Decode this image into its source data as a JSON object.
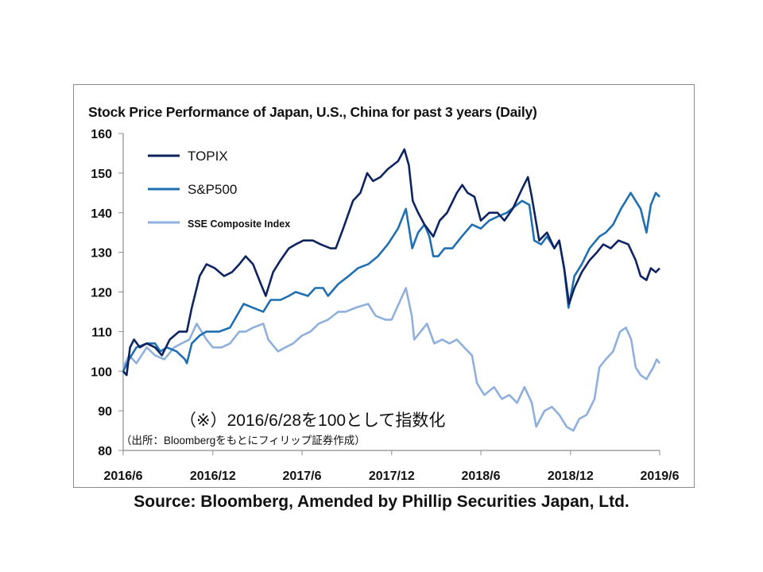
{
  "chart_data": {
    "type": "line",
    "title": "Stock Price Performance of Japan, U.S., China for past 3 years (Daily)",
    "xlabel": "",
    "ylabel": "",
    "ylim": [
      80,
      160
    ],
    "yticks": [
      "160",
      "150",
      "140",
      "130",
      "120",
      "110",
      "100",
      "90",
      "80"
    ],
    "xlim": [
      "2016-06-28",
      "2019-06-28"
    ],
    "xticks": [
      {
        "date": "2016-06-28",
        "label": "2016/6"
      },
      {
        "date": "2016-12-28",
        "label": "2016/12"
      },
      {
        "date": "2017-06-28",
        "label": "2017/6"
      },
      {
        "date": "2017-12-28",
        "label": "2017/12"
      },
      {
        "date": "2018-06-28",
        "label": "2018/6"
      },
      {
        "date": "2018-12-28",
        "label": "2018/12"
      },
      {
        "date": "2019-06-28",
        "label": "2019/6"
      }
    ],
    "grid": false,
    "legend_position": "top-left",
    "series": [
      {
        "name": "TOPIX",
        "color": "#0d2461",
        "points": [
          [
            "2016-06-28",
            100
          ],
          [
            "2016-07-05",
            99
          ],
          [
            "2016-07-12",
            106
          ],
          [
            "2016-07-20",
            108
          ],
          [
            "2016-08-01",
            106
          ],
          [
            "2016-08-15",
            107
          ],
          [
            "2016-09-01",
            106
          ],
          [
            "2016-09-15",
            104
          ],
          [
            "2016-10-01",
            108
          ],
          [
            "2016-10-20",
            110
          ],
          [
            "2016-11-05",
            110
          ],
          [
            "2016-11-15",
            116
          ],
          [
            "2016-12-01",
            124
          ],
          [
            "2016-12-15",
            127
          ],
          [
            "2017-01-01",
            126
          ],
          [
            "2017-01-20",
            124
          ],
          [
            "2017-02-05",
            125
          ],
          [
            "2017-02-20",
            127
          ],
          [
            "2017-03-05",
            129
          ],
          [
            "2017-03-20",
            127
          ],
          [
            "2017-04-05",
            122
          ],
          [
            "2017-04-15",
            119
          ],
          [
            "2017-04-30",
            125
          ],
          [
            "2017-05-15",
            128
          ],
          [
            "2017-06-01",
            131
          ],
          [
            "2017-06-15",
            132
          ],
          [
            "2017-07-01",
            133
          ],
          [
            "2017-07-20",
            133
          ],
          [
            "2017-08-05",
            132
          ],
          [
            "2017-08-25",
            131
          ],
          [
            "2017-09-05",
            131
          ],
          [
            "2017-09-20",
            136
          ],
          [
            "2017-10-10",
            143
          ],
          [
            "2017-10-25",
            145
          ],
          [
            "2017-11-08",
            150
          ],
          [
            "2017-11-20",
            148
          ],
          [
            "2017-12-05",
            149
          ],
          [
            "2017-12-20",
            151
          ],
          [
            "2018-01-10",
            153
          ],
          [
            "2018-01-23",
            156
          ],
          [
            "2018-02-01",
            152
          ],
          [
            "2018-02-09",
            143
          ],
          [
            "2018-02-20",
            140
          ],
          [
            "2018-03-05",
            137
          ],
          [
            "2018-03-23",
            134
          ],
          [
            "2018-04-05",
            138
          ],
          [
            "2018-04-20",
            140
          ],
          [
            "2018-05-10",
            145
          ],
          [
            "2018-05-21",
            147
          ],
          [
            "2018-06-01",
            145
          ],
          [
            "2018-06-15",
            144
          ],
          [
            "2018-06-28",
            138
          ],
          [
            "2018-07-15",
            140
          ],
          [
            "2018-08-01",
            140
          ],
          [
            "2018-08-15",
            138
          ],
          [
            "2018-09-01",
            141
          ],
          [
            "2018-09-20",
            146
          ],
          [
            "2018-10-02",
            149
          ],
          [
            "2018-10-10",
            144
          ],
          [
            "2018-10-25",
            133
          ],
          [
            "2018-11-10",
            135
          ],
          [
            "2018-11-25",
            131
          ],
          [
            "2018-12-05",
            133
          ],
          [
            "2018-12-15",
            126
          ],
          [
            "2018-12-25",
            117
          ],
          [
            "2019-01-05",
            121
          ],
          [
            "2019-01-20",
            125
          ],
          [
            "2019-02-05",
            128
          ],
          [
            "2019-02-20",
            130
          ],
          [
            "2019-03-05",
            132
          ],
          [
            "2019-03-20",
            131
          ],
          [
            "2019-04-05",
            133
          ],
          [
            "2019-04-25",
            132
          ],
          [
            "2019-05-10",
            128
          ],
          [
            "2019-05-20",
            124
          ],
          [
            "2019-06-01",
            123
          ],
          [
            "2019-06-10",
            126
          ],
          [
            "2019-06-20",
            125
          ],
          [
            "2019-06-28",
            126
          ]
        ]
      },
      {
        "name": "S&P500",
        "color": "#1f6fb2",
        "points": [
          [
            "2016-06-28",
            100
          ],
          [
            "2016-07-10",
            103
          ],
          [
            "2016-07-25",
            106
          ],
          [
            "2016-08-15",
            107
          ],
          [
            "2016-09-01",
            107
          ],
          [
            "2016-09-12",
            105
          ],
          [
            "2016-09-25",
            106
          ],
          [
            "2016-10-15",
            105
          ],
          [
            "2016-11-01",
            103
          ],
          [
            "2016-11-05",
            102
          ],
          [
            "2016-11-15",
            107
          ],
          [
            "2016-12-01",
            109
          ],
          [
            "2016-12-15",
            110
          ],
          [
            "2017-01-10",
            110
          ],
          [
            "2017-02-01",
            111
          ],
          [
            "2017-02-15",
            114
          ],
          [
            "2017-03-01",
            117
          ],
          [
            "2017-03-20",
            116
          ],
          [
            "2017-04-10",
            115
          ],
          [
            "2017-04-25",
            118
          ],
          [
            "2017-05-15",
            118
          ],
          [
            "2017-06-01",
            119
          ],
          [
            "2017-06-15",
            120
          ],
          [
            "2017-07-10",
            119
          ],
          [
            "2017-07-25",
            121
          ],
          [
            "2017-08-10",
            121
          ],
          [
            "2017-08-20",
            119
          ],
          [
            "2017-09-10",
            122
          ],
          [
            "2017-10-01",
            124
          ],
          [
            "2017-10-20",
            126
          ],
          [
            "2017-11-10",
            127
          ],
          [
            "2017-11-30",
            129
          ],
          [
            "2017-12-20",
            132
          ],
          [
            "2018-01-10",
            136
          ],
          [
            "2018-01-26",
            141
          ],
          [
            "2018-02-08",
            131
          ],
          [
            "2018-02-20",
            135
          ],
          [
            "2018-03-05",
            137
          ],
          [
            "2018-03-15",
            134
          ],
          [
            "2018-03-23",
            129
          ],
          [
            "2018-04-02",
            129
          ],
          [
            "2018-04-15",
            131
          ],
          [
            "2018-05-01",
            131
          ],
          [
            "2018-05-20",
            134
          ],
          [
            "2018-06-10",
            137
          ],
          [
            "2018-06-28",
            136
          ],
          [
            "2018-07-15",
            138
          ],
          [
            "2018-08-01",
            139
          ],
          [
            "2018-08-20",
            140
          ],
          [
            "2018-09-20",
            143
          ],
          [
            "2018-10-05",
            142
          ],
          [
            "2018-10-15",
            133
          ],
          [
            "2018-10-29",
            132
          ],
          [
            "2018-11-10",
            134
          ],
          [
            "2018-11-25",
            131
          ],
          [
            "2018-12-05",
            133
          ],
          [
            "2018-12-15",
            126
          ],
          [
            "2018-12-24",
            116
          ],
          [
            "2019-01-05",
            124
          ],
          [
            "2019-01-20",
            127
          ],
          [
            "2019-02-05",
            131
          ],
          [
            "2019-02-25",
            134
          ],
          [
            "2019-03-10",
            135
          ],
          [
            "2019-03-25",
            137
          ],
          [
            "2019-04-10",
            141
          ],
          [
            "2019-04-30",
            145
          ],
          [
            "2019-05-10",
            143
          ],
          [
            "2019-05-20",
            141
          ],
          [
            "2019-06-01",
            135
          ],
          [
            "2019-06-10",
            142
          ],
          [
            "2019-06-20",
            145
          ],
          [
            "2019-06-28",
            144
          ]
        ]
      },
      {
        "name": "SSE Composite Index",
        "color": "#8fb0dc",
        "points": [
          [
            "2016-06-28",
            101
          ],
          [
            "2016-07-10",
            104
          ],
          [
            "2016-07-25",
            102
          ],
          [
            "2016-08-15",
            106
          ],
          [
            "2016-09-01",
            104
          ],
          [
            "2016-09-20",
            103
          ],
          [
            "2016-10-10",
            106
          ],
          [
            "2016-10-25",
            107
          ],
          [
            "2016-11-10",
            108
          ],
          [
            "2016-11-25",
            112
          ],
          [
            "2016-12-15",
            108
          ],
          [
            "2016-12-28",
            106
          ],
          [
            "2017-01-15",
            106
          ],
          [
            "2017-02-01",
            107
          ],
          [
            "2017-02-20",
            110
          ],
          [
            "2017-03-05",
            110
          ],
          [
            "2017-03-20",
            111
          ],
          [
            "2017-04-10",
            112
          ],
          [
            "2017-04-20",
            108
          ],
          [
            "2017-05-10",
            105
          ],
          [
            "2017-05-25",
            106
          ],
          [
            "2017-06-10",
            107
          ],
          [
            "2017-06-28",
            109
          ],
          [
            "2017-07-15",
            110
          ],
          [
            "2017-08-01",
            112
          ],
          [
            "2017-08-20",
            113
          ],
          [
            "2017-09-10",
            115
          ],
          [
            "2017-09-25",
            115
          ],
          [
            "2017-10-15",
            116
          ],
          [
            "2017-11-10",
            117
          ],
          [
            "2017-11-25",
            114
          ],
          [
            "2017-12-15",
            113
          ],
          [
            "2017-12-28",
            113
          ],
          [
            "2018-01-15",
            118
          ],
          [
            "2018-01-26",
            121
          ],
          [
            "2018-02-07",
            114
          ],
          [
            "2018-02-12",
            108
          ],
          [
            "2018-02-25",
            110
          ],
          [
            "2018-03-10",
            112
          ],
          [
            "2018-03-25",
            107
          ],
          [
            "2018-04-10",
            108
          ],
          [
            "2018-04-25",
            107
          ],
          [
            "2018-05-10",
            108
          ],
          [
            "2018-05-25",
            106
          ],
          [
            "2018-06-10",
            104
          ],
          [
            "2018-06-20",
            97
          ],
          [
            "2018-07-05",
            94
          ],
          [
            "2018-07-25",
            96
          ],
          [
            "2018-08-10",
            93
          ],
          [
            "2018-08-25",
            94
          ],
          [
            "2018-09-10",
            92
          ],
          [
            "2018-09-25",
            96
          ],
          [
            "2018-10-10",
            92
          ],
          [
            "2018-10-19",
            86
          ],
          [
            "2018-11-05",
            90
          ],
          [
            "2018-11-20",
            91
          ],
          [
            "2018-12-05",
            89
          ],
          [
            "2018-12-20",
            86
          ],
          [
            "2019-01-03",
            85
          ],
          [
            "2019-01-15",
            88
          ],
          [
            "2019-01-30",
            89
          ],
          [
            "2019-02-15",
            93
          ],
          [
            "2019-02-25",
            101
          ],
          [
            "2019-03-10",
            103
          ],
          [
            "2019-03-25",
            105
          ],
          [
            "2019-04-08",
            110
          ],
          [
            "2019-04-20",
            111
          ],
          [
            "2019-05-01",
            108
          ],
          [
            "2019-05-10",
            101
          ],
          [
            "2019-05-20",
            99
          ],
          [
            "2019-06-01",
            98
          ],
          [
            "2019-06-15",
            101
          ],
          [
            "2019-06-22",
            103
          ],
          [
            "2019-06-28",
            102
          ]
        ]
      }
    ]
  },
  "annotations": {
    "base_note": "（※）2016/6/28を100として指数化",
    "source_note": "（出所：Bloombergをもとにフィリップ証券作成）"
  },
  "source": "Source: Bloomberg, Amended by Phillip Securities Japan, Ltd."
}
